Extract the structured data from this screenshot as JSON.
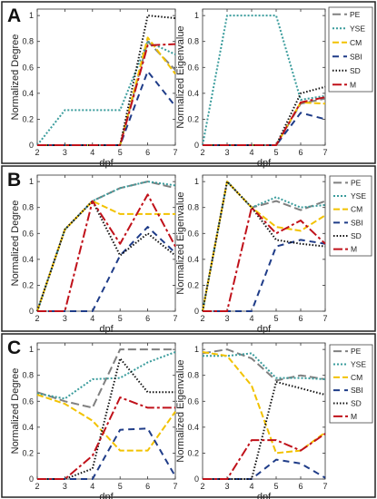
{
  "figure": {
    "panels": [
      {
        "label": "A"
      },
      {
        "label": "B"
      },
      {
        "label": "C"
      }
    ]
  },
  "legend": {
    "entries": [
      "PE",
      "YSE",
      "CM",
      "SBI",
      "SD",
      "M"
    ]
  },
  "styles": {
    "PE": {
      "color": "#808080",
      "dash": "9,4"
    },
    "YSE": {
      "color": "#3a9c9c",
      "dash": "2,2"
    },
    "CM": {
      "color": "#f2c200",
      "dash": "7,3"
    },
    "SBI": {
      "color": "#1f3c88",
      "dash": "7,5"
    },
    "SD": {
      "color": "#111111",
      "dash": "1.5,2"
    },
    "M": {
      "color": "#c0111a",
      "dash": "10,3,3,3"
    }
  },
  "chart_data": [
    {
      "type": "line",
      "panel": "A",
      "xlabel": "dpf",
      "ylabel": "Normalized Degree",
      "xlim": [
        2,
        7
      ],
      "ylim": [
        0,
        1.05
      ],
      "xticks": [
        "2",
        "3",
        "4",
        "5",
        "6",
        "7"
      ],
      "yticks": [
        "0",
        "0.2",
        "0.4",
        "0.6",
        "0.8",
        "1"
      ],
      "x": [
        2,
        3,
        4,
        5,
        6,
        7
      ],
      "series": [
        {
          "name": "PE",
          "values": [
            0,
            0,
            0,
            0,
            0.8,
            0.58
          ]
        },
        {
          "name": "YSE",
          "values": [
            0,
            0.27,
            0.27,
            0.27,
            0.8,
            0.7
          ]
        },
        {
          "name": "CM",
          "values": [
            0,
            0,
            0,
            0,
            0.83,
            0.55
          ]
        },
        {
          "name": "SBI",
          "values": [
            0,
            0,
            0,
            0,
            0.57,
            0.3
          ]
        },
        {
          "name": "SD",
          "values": [
            0,
            0,
            0,
            0,
            1.0,
            0.98
          ]
        },
        {
          "name": "M",
          "values": [
            0,
            0,
            0,
            0,
            0.77,
            0.78
          ]
        }
      ]
    },
    {
      "type": "line",
      "panel": "A",
      "xlabel": "dpf",
      "ylabel": "Normalized Eigenvalue",
      "xlim": [
        2,
        7
      ],
      "ylim": [
        0,
        1.05
      ],
      "xticks": [
        "2",
        "3",
        "4",
        "5",
        "6",
        "7"
      ],
      "yticks": [
        "0",
        "0.2",
        "0.4",
        "0.6",
        "0.8",
        "1"
      ],
      "x": [
        2,
        3,
        4,
        5,
        6,
        7
      ],
      "series": [
        {
          "name": "PE",
          "values": [
            0,
            0,
            0,
            0,
            0.32,
            0.36
          ]
        },
        {
          "name": "YSE",
          "values": [
            0,
            1.0,
            1.0,
            1.0,
            0.35,
            0.38
          ]
        },
        {
          "name": "CM",
          "values": [
            0,
            0,
            0,
            0,
            0.33,
            0.32
          ]
        },
        {
          "name": "SBI",
          "values": [
            0,
            0,
            0,
            0,
            0.25,
            0.2
          ]
        },
        {
          "name": "SD",
          "values": [
            0,
            0,
            0,
            0,
            0.4,
            0.45
          ]
        },
        {
          "name": "M",
          "values": [
            0,
            0,
            0,
            0,
            0.33,
            0.37
          ]
        }
      ]
    },
    {
      "type": "line",
      "panel": "B",
      "xlabel": "dpf",
      "ylabel": "Normalized Degree",
      "xlim": [
        2,
        7
      ],
      "ylim": [
        0,
        1.05
      ],
      "xticks": [
        "2",
        "3",
        "4",
        "5",
        "6",
        "7"
      ],
      "yticks": [
        "0",
        "0.2",
        "0.4",
        "0.6",
        "0.8",
        "1"
      ],
      "x": [
        2,
        3,
        4,
        5,
        6,
        7
      ],
      "series": [
        {
          "name": "PE",
          "values": [
            0,
            0.63,
            0.85,
            0.95,
            1.0,
            0.95
          ]
        },
        {
          "name": "YSE",
          "values": [
            0,
            0.63,
            0.85,
            0.95,
            1.0,
            0.97
          ]
        },
        {
          "name": "CM",
          "values": [
            0,
            0.63,
            0.85,
            0.75,
            0.75,
            0.75
          ]
        },
        {
          "name": "SBI",
          "values": [
            0,
            0,
            0,
            0.43,
            0.65,
            0.45
          ]
        },
        {
          "name": "SD",
          "values": [
            0,
            0.63,
            0.85,
            0.43,
            0.6,
            0.43
          ]
        },
        {
          "name": "M",
          "values": [
            0,
            0,
            0.85,
            0.52,
            0.9,
            0.5
          ]
        }
      ]
    },
    {
      "type": "line",
      "panel": "B",
      "xlabel": "dpf",
      "ylabel": "Normalized Eigenvalue",
      "xlim": [
        2,
        7
      ],
      "ylim": [
        0,
        1.05
      ],
      "xticks": [
        "2",
        "3",
        "4",
        "5",
        "6",
        "7"
      ],
      "yticks": [
        "0",
        "0.2",
        "0.4",
        "0.6",
        "0.8",
        "1"
      ],
      "x": [
        2,
        3,
        4,
        5,
        6,
        7
      ],
      "series": [
        {
          "name": "PE",
          "values": [
            0,
            1.0,
            0.8,
            0.85,
            0.78,
            0.85
          ]
        },
        {
          "name": "YSE",
          "values": [
            0,
            1.0,
            0.8,
            0.88,
            0.8,
            0.82
          ]
        },
        {
          "name": "CM",
          "values": [
            0,
            1.0,
            0.8,
            0.65,
            0.62,
            0.74
          ]
        },
        {
          "name": "SBI",
          "values": [
            0,
            0,
            0,
            0.5,
            0.55,
            0.52
          ]
        },
        {
          "name": "SD",
          "values": [
            0,
            1.0,
            0.8,
            0.55,
            0.52,
            0.5
          ]
        },
        {
          "name": "M",
          "values": [
            0,
            0,
            0.8,
            0.6,
            0.7,
            0.52
          ]
        }
      ]
    },
    {
      "type": "line",
      "panel": "C",
      "xlabel": "dpf",
      "ylabel": "Normalized Degree",
      "xlim": [
        2,
        7
      ],
      "ylim": [
        0,
        1.05
      ],
      "xticks": [
        "2",
        "3",
        "4",
        "5",
        "6",
        "7"
      ],
      "yticks": [
        "0",
        "0.2",
        "0.4",
        "0.6",
        "0.8",
        "1"
      ],
      "x": [
        2,
        3,
        4,
        5,
        6,
        7
      ],
      "series": [
        {
          "name": "PE",
          "values": [
            0.67,
            0.6,
            0.55,
            1.0,
            1.0,
            1.0
          ]
        },
        {
          "name": "YSE",
          "values": [
            0.66,
            0.62,
            0.77,
            0.78,
            0.9,
            0.98
          ]
        },
        {
          "name": "CM",
          "values": [
            0.65,
            0.58,
            0.45,
            0.22,
            0.22,
            0.52
          ]
        },
        {
          "name": "SBI",
          "values": [
            0,
            0,
            0,
            0.38,
            0.39,
            0.02
          ]
        },
        {
          "name": "SD",
          "values": [
            0,
            0,
            0.08,
            0.93,
            0.67,
            0.67
          ]
        },
        {
          "name": "M",
          "values": [
            0,
            0,
            0.18,
            0.63,
            0.55,
            0.55
          ]
        }
      ]
    },
    {
      "type": "line",
      "panel": "C",
      "xlabel": "dpf",
      "ylabel": "Normalized Eigenvalue",
      "xlim": [
        2,
        7
      ],
      "ylim": [
        0,
        1.05
      ],
      "xticks": [
        "2",
        "3",
        "4",
        "5",
        "6",
        "7"
      ],
      "yticks": [
        "0",
        "0.2",
        "0.4",
        "0.6",
        "0.8",
        "1"
      ],
      "x": [
        2,
        3,
        4,
        5,
        6,
        7
      ],
      "series": [
        {
          "name": "PE",
          "values": [
            0.97,
            1.0,
            0.93,
            0.76,
            0.8,
            0.77
          ]
        },
        {
          "name": "YSE",
          "values": [
            0.95,
            0.95,
            0.97,
            0.78,
            0.78,
            0.77
          ]
        },
        {
          "name": "CM",
          "values": [
            0.98,
            0.95,
            0.72,
            0.2,
            0.22,
            0.36
          ]
        },
        {
          "name": "SBI",
          "values": [
            0,
            0,
            0,
            0.15,
            0.12,
            0.01
          ]
        },
        {
          "name": "SD",
          "values": [
            0,
            0,
            0,
            0.75,
            0.7,
            0.65
          ]
        },
        {
          "name": "M",
          "values": [
            0,
            0,
            0.3,
            0.3,
            0.22,
            0.35
          ]
        }
      ]
    }
  ]
}
